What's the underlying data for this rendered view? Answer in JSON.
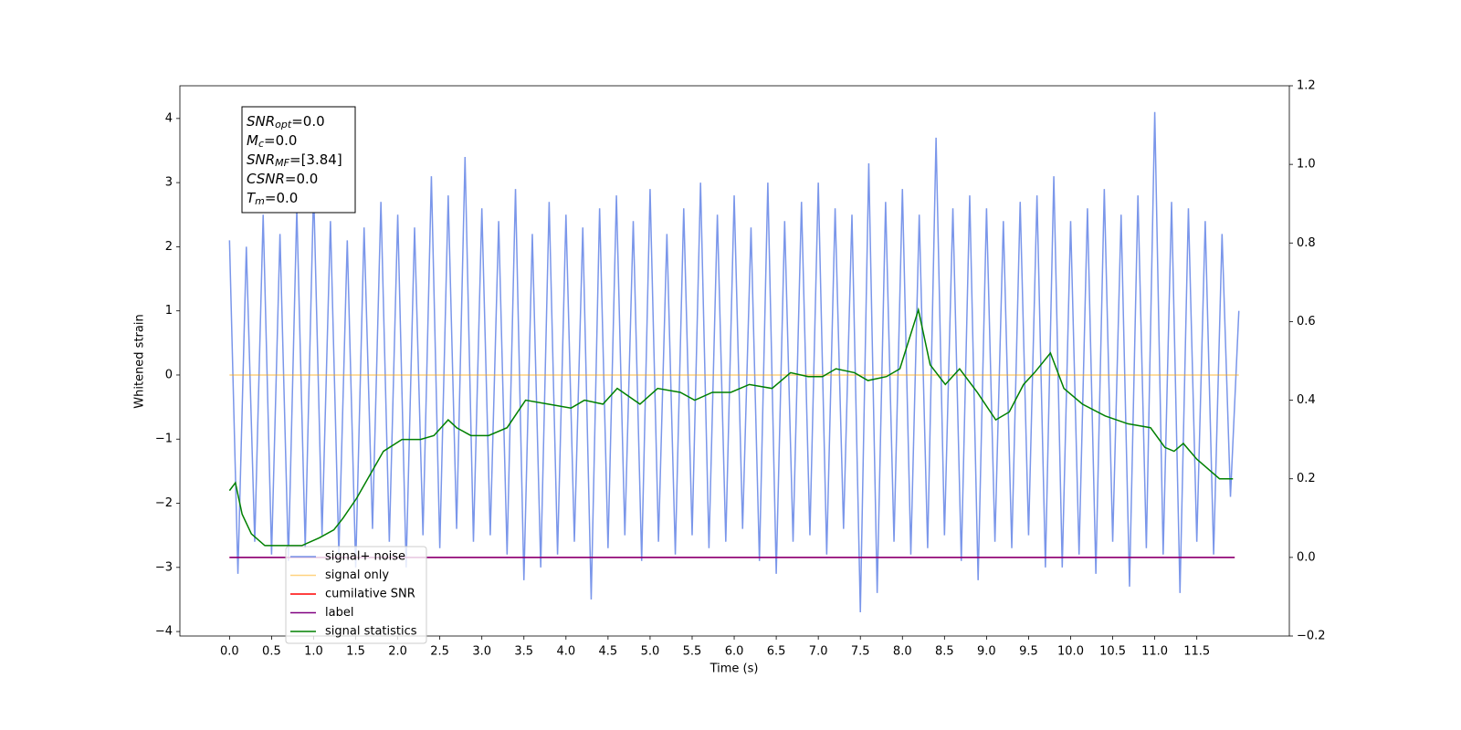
{
  "chart_data": {
    "type": "line",
    "xlabel": "Time (s)",
    "ylabel": "Whitened strain",
    "xlim": [
      -0.59,
      12.6
    ],
    "ylim": [
      -4.07,
      4.51
    ],
    "y2lim": [
      -0.2,
      1.2
    ],
    "xticks": [
      {
        "value": 0,
        "label": "0.0"
      },
      0.5,
      {
        "value": 1,
        "label": "1.0"
      },
      1.5,
      {
        "value": 2,
        "label": "2.0"
      },
      2.5,
      {
        "value": 3,
        "label": "3.0"
      },
      3.5,
      {
        "value": 4,
        "label": "4.0"
      },
      4.5,
      {
        "value": 5,
        "label": "5.0"
      },
      5.5,
      {
        "value": 6,
        "label": "6.0"
      },
      6.5,
      {
        "value": 7,
        "label": "7.0"
      },
      7.5,
      {
        "value": 8,
        "label": "8.0"
      },
      8.5,
      {
        "value": 9,
        "label": "9.0"
      },
      9.5,
      {
        "value": 10,
        "label": "10.0"
      },
      10.5,
      {
        "value": 11,
        "label": "11.0"
      },
      11.5
    ],
    "yticks": [
      {
        "value": -4,
        "label": "−4"
      },
      {
        "value": -3,
        "label": "−3"
      },
      {
        "value": -2,
        "label": "−2"
      },
      {
        "value": -1,
        "label": "−1"
      },
      0,
      1,
      2,
      3,
      4
    ],
    "y2ticks": [
      {
        "value": -0.2,
        "label": "−0.2"
      },
      {
        "value": 0,
        "label": "0.0"
      },
      0.2,
      0.4,
      0.6,
      0.8,
      {
        "value": 1,
        "label": "1.0"
      },
      1.2
    ],
    "legend": "lower left",
    "annotations": [
      {
        "base": "SNR",
        "sub": "opt",
        "rest": "=0.0"
      },
      {
        "base": "M",
        "sub": "c",
        "rest": "=0.0"
      },
      {
        "base": "SNR",
        "sub": "MF",
        "rest": "=[3.84]"
      },
      {
        "base": "CSNR",
        "sub": null,
        "rest": "=0.0"
      },
      {
        "base": "T",
        "sub": "m",
        "rest": "=0.0"
      }
    ],
    "series": [
      {
        "name": "signal+ noise",
        "color": "#4169e1",
        "axis": "y",
        "x": [
          0,
          0.1,
          0.2,
          0.3,
          0.4,
          0.5,
          0.6,
          0.7,
          0.8,
          0.9,
          1,
          1.1,
          1.2,
          1.3,
          1.4,
          1.5,
          1.6,
          1.7,
          1.8,
          1.9,
          2,
          2.1,
          2.2,
          2.3,
          2.4,
          2.5,
          2.6,
          2.7,
          2.8,
          2.9,
          3,
          3.1,
          3.2,
          3.3,
          3.4,
          3.5,
          3.6,
          3.7,
          3.8,
          3.9,
          4,
          4.1,
          4.2,
          4.3,
          4.4,
          4.5,
          4.6,
          4.7,
          4.8,
          4.9,
          5,
          5.1,
          5.2,
          5.3,
          5.4,
          5.5,
          5.6,
          5.7,
          5.8,
          5.9,
          6,
          6.1,
          6.2,
          6.3,
          6.4,
          6.5,
          6.6,
          6.7,
          6.8,
          6.9,
          7,
          7.1,
          7.2,
          7.3,
          7.4,
          7.5,
          7.6,
          7.7,
          7.8,
          7.9,
          8,
          8.1,
          8.2,
          8.3,
          8.4,
          8.5,
          8.6,
          8.7,
          8.8,
          8.9,
          9,
          9.1,
          9.2,
          9.3,
          9.4,
          9.5,
          9.6,
          9.7,
          9.8,
          9.9,
          10,
          10.1,
          10.2,
          10.3,
          10.4,
          10.5,
          10.6,
          10.7,
          10.8,
          10.9,
          11,
          11.1,
          11.2,
          11.3,
          11.4,
          11.5,
          11.6,
          11.7,
          11.8,
          11.9,
          12
        ],
        "values": [
          2.1,
          -3.1,
          2.0,
          -2.6,
          2.5,
          -2.8,
          2.2,
          -2.9,
          2.6,
          -2.7,
          2.9,
          -2.5,
          2.4,
          -2.8,
          2.1,
          -3.0,
          2.3,
          -2.4,
          2.7,
          -2.6,
          2.5,
          -3.0,
          2.3,
          -2.5,
          3.1,
          -2.7,
          2.8,
          -2.4,
          3.4,
          -2.6,
          2.6,
          -2.5,
          2.4,
          -2.8,
          2.9,
          -3.2,
          2.2,
          -3.0,
          2.7,
          -2.8,
          2.5,
          -2.6,
          2.3,
          -3.5,
          2.6,
          -2.7,
          2.8,
          -2.5,
          2.4,
          -2.9,
          2.9,
          -2.6,
          2.2,
          -2.8,
          2.6,
          -2.5,
          3.0,
          -2.7,
          2.5,
          -2.6,
          2.8,
          -2.4,
          2.3,
          -2.9,
          3.0,
          -3.1,
          2.4,
          -2.6,
          2.7,
          -2.5,
          3.0,
          -2.8,
          2.6,
          -2.4,
          2.5,
          -3.7,
          3.3,
          -3.4,
          2.7,
          -2.6,
          2.9,
          -2.8,
          2.5,
          -2.7,
          3.7,
          -2.5,
          2.6,
          -2.9,
          2.8,
          -3.2,
          2.6,
          -2.6,
          2.4,
          -2.7,
          2.7,
          -2.5,
          2.8,
          -3.0,
          3.1,
          -3.0,
          2.4,
          -2.8,
          2.6,
          -3.1,
          2.9,
          -2.6,
          2.5,
          -3.3,
          2.8,
          -2.7,
          4.1,
          -2.8,
          2.7,
          -3.4,
          2.6,
          -2.6,
          2.4,
          -2.8,
          2.2,
          -1.9,
          1.0
        ]
      },
      {
        "name": "signal only",
        "color": "#ffa500",
        "axis": "y",
        "x": [
          0,
          12
        ],
        "values": [
          0,
          0
        ]
      },
      {
        "name": "cumilative SNR",
        "color": "#ff0000",
        "axis": "y2",
        "x": [
          0,
          11.95
        ],
        "values": [
          0,
          0
        ]
      },
      {
        "name": "label",
        "color": "#800080",
        "axis": "y2",
        "x": [
          0,
          11.95
        ],
        "values": [
          0,
          0
        ]
      },
      {
        "name": "signal statistics",
        "color": "#008000",
        "axis": "y2",
        "x": [
          0,
          0.07,
          0.15,
          0.26,
          0.42,
          0.64,
          0.86,
          1.07,
          1.24,
          1.35,
          1.51,
          1.67,
          1.83,
          2.05,
          2.27,
          2.43,
          2.6,
          2.7,
          2.87,
          3.08,
          3.3,
          3.52,
          3.79,
          4.06,
          4.22,
          4.44,
          4.61,
          4.88,
          5.09,
          5.36,
          5.53,
          5.74,
          5.96,
          6.18,
          6.45,
          6.67,
          6.88,
          7.05,
          7.21,
          7.43,
          7.59,
          7.81,
          7.97,
          8.19,
          8.33,
          8.51,
          8.68,
          8.89,
          9.11,
          9.27,
          9.44,
          9.57,
          9.76,
          9.92,
          10.14,
          10.41,
          10.68,
          10.95,
          11.12,
          11.23,
          11.34,
          11.5,
          11.77,
          11.93
        ],
        "values": [
          0.17,
          0.19,
          0.11,
          0.06,
          0.03,
          0.03,
          0.03,
          0.05,
          0.07,
          0.1,
          0.15,
          0.21,
          0.27,
          0.3,
          0.3,
          0.31,
          0.35,
          0.33,
          0.31,
          0.31,
          0.33,
          0.4,
          0.39,
          0.38,
          0.4,
          0.39,
          0.43,
          0.39,
          0.43,
          0.42,
          0.4,
          0.42,
          0.42,
          0.44,
          0.43,
          0.47,
          0.46,
          0.46,
          0.48,
          0.47,
          0.45,
          0.46,
          0.48,
          0.63,
          0.49,
          0.44,
          0.48,
          0.42,
          0.35,
          0.37,
          0.44,
          0.47,
          0.52,
          0.43,
          0.39,
          0.36,
          0.34,
          0.33,
          0.28,
          0.27,
          0.29,
          0.25,
          0.2,
          0.2
        ]
      }
    ]
  }
}
